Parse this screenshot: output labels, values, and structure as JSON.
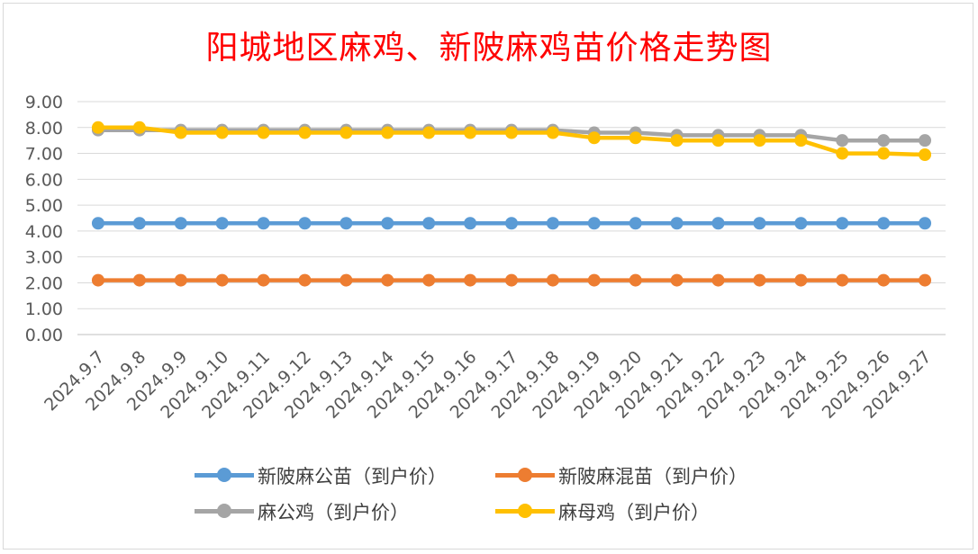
{
  "chart_data": {
    "type": "line",
    "title": "阳城地区麻鸡、新陂麻鸡苗价格走势图",
    "categories": [
      "2024.9.7",
      "2024.9.8",
      "2024.9.9",
      "2024.9.10",
      "2024.9.11",
      "2024.9.12",
      "2024.9.13",
      "2024.9.14",
      "2024.9.15",
      "2024.9.16",
      "2024.9.17",
      "2024.9.18",
      "2024.9.19",
      "2024.9.20",
      "2024.9.21",
      "2024.9.22",
      "2024.9.23",
      "2024.9.24",
      "2024.9.25",
      "2024.9.26",
      "2024.9.27"
    ],
    "ylim": [
      0,
      9
    ],
    "yticks": [
      "0.00",
      "1.00",
      "2.00",
      "3.00",
      "4.00",
      "5.00",
      "6.00",
      "7.00",
      "8.00",
      "9.00"
    ],
    "grid": true,
    "legend_position": "bottom",
    "series": [
      {
        "name": "新陂麻公苗（到户价）",
        "color": "#5b9bd5",
        "values": [
          4.3,
          4.3,
          4.3,
          4.3,
          4.3,
          4.3,
          4.3,
          4.3,
          4.3,
          4.3,
          4.3,
          4.3,
          4.3,
          4.3,
          4.3,
          4.3,
          4.3,
          4.3,
          4.3,
          4.3,
          4.3
        ]
      },
      {
        "name": "新陂麻混苗（到户价）",
        "color": "#ed7d31",
        "values": [
          2.1,
          2.1,
          2.1,
          2.1,
          2.1,
          2.1,
          2.1,
          2.1,
          2.1,
          2.1,
          2.1,
          2.1,
          2.1,
          2.1,
          2.1,
          2.1,
          2.1,
          2.1,
          2.1,
          2.1,
          2.1
        ]
      },
      {
        "name": "麻公鸡（到户价）",
        "color": "#a5a5a5",
        "values": [
          7.9,
          7.9,
          7.9,
          7.9,
          7.9,
          7.9,
          7.9,
          7.9,
          7.9,
          7.9,
          7.9,
          7.9,
          7.8,
          7.8,
          7.7,
          7.7,
          7.7,
          7.7,
          7.5,
          7.5,
          7.5
        ]
      },
      {
        "name": "麻母鸡（到户价）",
        "color": "#ffc000",
        "values": [
          8.0,
          8.0,
          7.8,
          7.8,
          7.8,
          7.8,
          7.8,
          7.8,
          7.8,
          7.8,
          7.8,
          7.8,
          7.6,
          7.6,
          7.5,
          7.5,
          7.5,
          7.5,
          7.0,
          7.0,
          6.95
        ]
      }
    ]
  }
}
